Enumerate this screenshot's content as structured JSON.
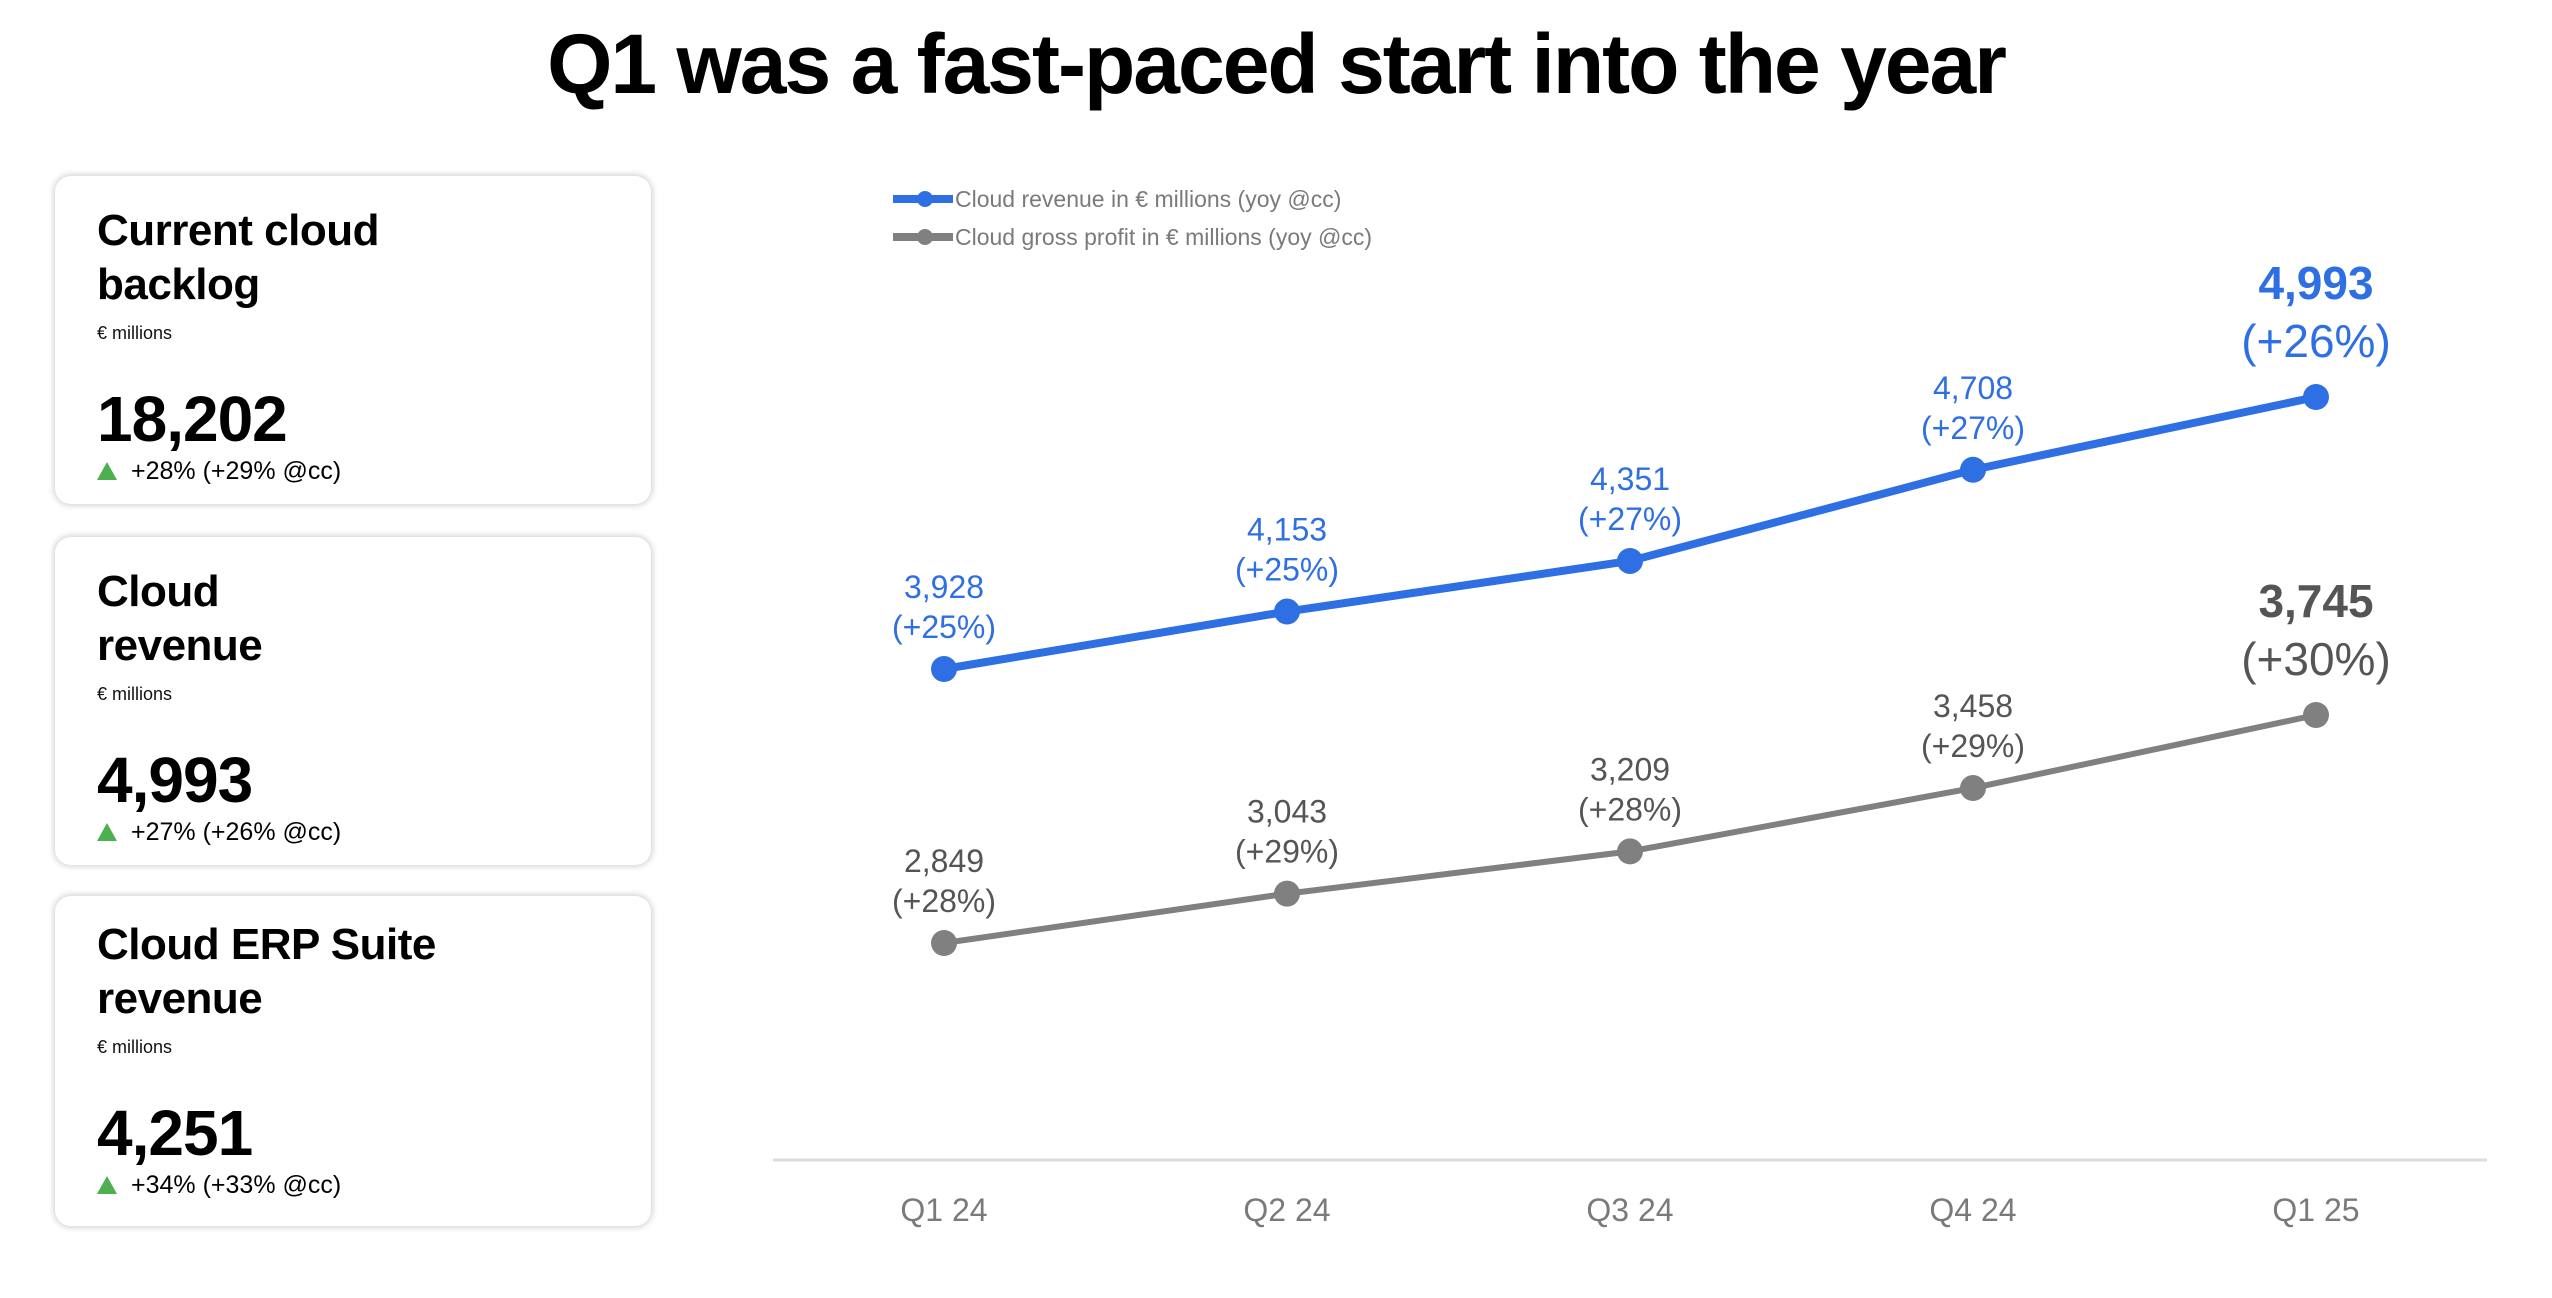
{
  "header": {
    "title": "Q1 was a fast-paced start into the year"
  },
  "cards": [
    {
      "title": "Current cloud backlog",
      "unit": "€ millions",
      "value": "18,202",
      "change": "+28% (+29% @cc)",
      "trend": "up"
    },
    {
      "title": "Cloud revenue",
      "unit": "€ millions",
      "value": "4,993",
      "change": "+27% (+26% @cc)",
      "trend": "up"
    },
    {
      "title": "Cloud ERP Suite revenue",
      "unit": "€ millions",
      "value": "4,251",
      "change": "+34% (+33% @cc)",
      "trend": "up"
    }
  ],
  "colors": {
    "revenue": "#2F6FE4",
    "gross_profit": "#808080",
    "gross_profit_label": "#555555",
    "axis": "#dddddd",
    "axis_label": "#7a7a7a",
    "trend_up": "#4CAF50"
  },
  "chart_data": {
    "type": "line",
    "title": "",
    "xlabel": "",
    "ylabel": "",
    "categories": [
      "Q1 24",
      "Q2 24",
      "Q3 24",
      "Q4 24",
      "Q1 25"
    ],
    "series": [
      {
        "name": "Cloud revenue in € millions (yoy @cc)",
        "values": [
          3928,
          4153,
          4351,
          4708,
          4993
        ],
        "labels": [
          "3,928",
          "4,153",
          "4,351",
          "4,708",
          "4,993"
        ],
        "yoy": [
          "(+25%)",
          "(+25%)",
          "(+27%)",
          "(+27%)",
          "(+26%)"
        ]
      },
      {
        "name": "Cloud gross profit in € millions (yoy @cc)",
        "values": [
          2849,
          3043,
          3209,
          3458,
          3745
        ],
        "labels": [
          "2,849",
          "3,043",
          "3,209",
          "3,458",
          "3,745"
        ],
        "yoy": [
          "(+28%)",
          "(+29%)",
          "(+28%)",
          "(+29%)",
          "(+30%)"
        ]
      }
    ],
    "grid": false,
    "legend_position": "top-left",
    "highlight_last_point": true
  }
}
